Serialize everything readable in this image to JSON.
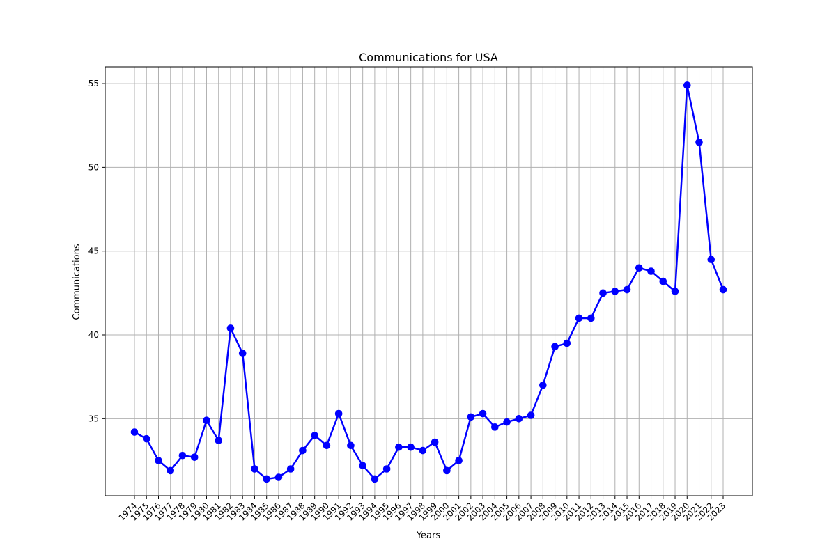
{
  "chart_data": {
    "type": "line",
    "title": "Communications for USA",
    "xlabel": "Years",
    "ylabel": "Communications",
    "x": [
      "1974",
      "1975",
      "1976",
      "1977",
      "1978",
      "1979",
      "1980",
      "1981",
      "1982",
      "1983",
      "1984",
      "1985",
      "1986",
      "1987",
      "1988",
      "1989",
      "1990",
      "1991",
      "1992",
      "1993",
      "1994",
      "1995",
      "1996",
      "1997",
      "1998",
      "1999",
      "2000",
      "2001",
      "2002",
      "2003",
      "2004",
      "2005",
      "2006",
      "2007",
      "2008",
      "2009",
      "2010",
      "2011",
      "2012",
      "2013",
      "2014",
      "2015",
      "2016",
      "2017",
      "2018",
      "2019",
      "2020",
      "2021",
      "2022",
      "2023"
    ],
    "series": [
      {
        "values": [
          34.2,
          33.8,
          32.5,
          31.9,
          32.8,
          32.7,
          34.9,
          33.7,
          40.4,
          38.9,
          32.0,
          31.4,
          31.5,
          32.0,
          33.1,
          34.0,
          33.4,
          35.3,
          33.4,
          32.2,
          31.4,
          32.0,
          33.3,
          33.3,
          33.1,
          33.6,
          31.9,
          32.5,
          35.1,
          35.3,
          34.5,
          34.8,
          35.0,
          35.2,
          37.0,
          39.3,
          39.5,
          41.0,
          41.0,
          42.5,
          42.6,
          42.7,
          44.0,
          43.8,
          43.2,
          42.6,
          54.9,
          51.5,
          44.5,
          42.7
        ],
        "color": "#0000ff"
      }
    ],
    "ylim": [
      30.4,
      56.0
    ],
    "yticks": [
      35,
      40,
      45,
      50,
      55
    ],
    "grid": true
  }
}
